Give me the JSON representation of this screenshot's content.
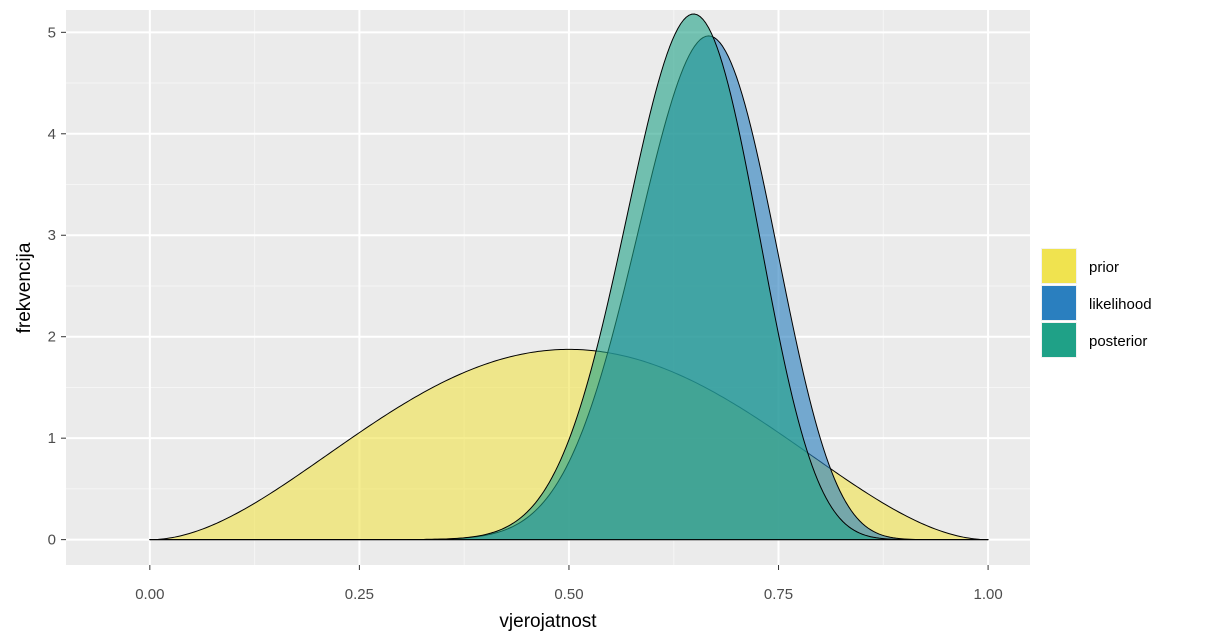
{
  "chart_data": {
    "type": "area",
    "title": "",
    "xlabel": "vjerojatnost",
    "ylabel": "frekvencija",
    "xlim": [
      -0.1,
      1.05
    ],
    "ylim": [
      -0.25,
      5.22
    ],
    "x_ticks": [
      0,
      0.25,
      0.5,
      0.75,
      1.0
    ],
    "x_tick_labels": [
      "0.00",
      "0.25",
      "0.50",
      "0.75",
      "1.00"
    ],
    "y_ticks": [
      0,
      1,
      2,
      3,
      4,
      5
    ],
    "y_tick_labels": [
      "0",
      "1",
      "2",
      "3",
      "4",
      "5"
    ],
    "grid": true,
    "legend_position": "right",
    "series": [
      {
        "name": "prior",
        "color": "#F0E34F",
        "fill_opacity": 0.62,
        "beta_shape": [
          3,
          3
        ]
      },
      {
        "name": "likelihood",
        "color": "#2A7FBF",
        "fill_opacity": 0.62,
        "beta_shape": [
          23,
          12
        ]
      },
      {
        "name": "posterior",
        "color": "#1FA187",
        "fill_opacity": 0.6,
        "beta_shape": [
          25,
          14
        ]
      }
    ],
    "legend": {
      "items": [
        {
          "label": "prior",
          "color": "#F0E34F"
        },
        {
          "label": "likelihood",
          "color": "#2A7FBF"
        },
        {
          "label": "posterior",
          "color": "#1FA187"
        }
      ]
    }
  }
}
